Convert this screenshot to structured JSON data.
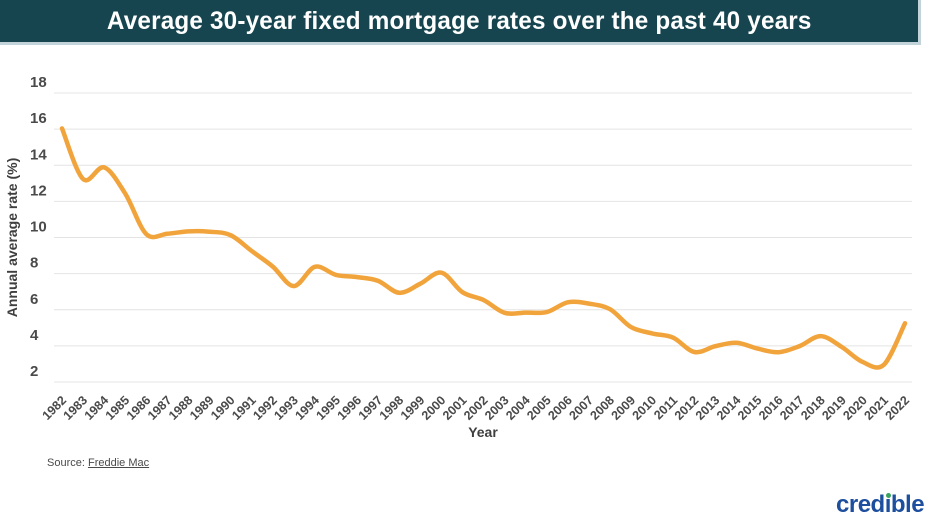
{
  "title": "Average 30-year fixed mortgage rates over the past 40 years",
  "source": {
    "prefix": "Source: ",
    "link_text": "Freddie Mac"
  },
  "logo": {
    "part1": "cred",
    "i_stem": "ı",
    "part2": "ble",
    "blue": "#1d4f9e",
    "green": "#3aa45f"
  },
  "chart_data": {
    "type": "line",
    "title": "Average 30-year fixed mortgage rates over the past 40 years",
    "xlabel": "Year",
    "ylabel": "Annual average rate (%)",
    "categories": [
      "1982",
      "1983",
      "1984",
      "1985",
      "1986",
      "1987",
      "1988",
      "1989",
      "1990",
      "1991",
      "1992",
      "1993",
      "1994",
      "1995",
      "1996",
      "1997",
      "1998",
      "1999",
      "2000",
      "2001",
      "2002",
      "2003",
      "2004",
      "2005",
      "2006",
      "2007",
      "2008",
      "2009",
      "2010",
      "2011",
      "2012",
      "2013",
      "2014",
      "2015",
      "2016",
      "2017",
      "2018",
      "2019",
      "2020",
      "2021",
      "2022"
    ],
    "series": [
      {
        "name": "30-year fixed mortgage rate",
        "color": "#F2A43C",
        "values": [
          16.04,
          13.24,
          13.88,
          12.43,
          10.19,
          10.21,
          10.34,
          10.32,
          10.13,
          9.25,
          8.39,
          7.31,
          8.38,
          7.93,
          7.81,
          7.6,
          6.94,
          7.44,
          8.05,
          6.97,
          6.54,
          5.83,
          5.84,
          5.87,
          6.41,
          6.34,
          6.03,
          5.04,
          4.69,
          4.45,
          3.66,
          3.98,
          4.17,
          3.85,
          3.65,
          3.99,
          4.54,
          3.94,
          3.1,
          2.96,
          5.25
        ]
      }
    ],
    "ylim": [
      2,
      18
    ],
    "y_ticks": [
      2,
      4,
      6,
      8,
      10,
      12,
      14,
      16,
      18
    ],
    "grid": "horizontal",
    "legend": "none"
  }
}
